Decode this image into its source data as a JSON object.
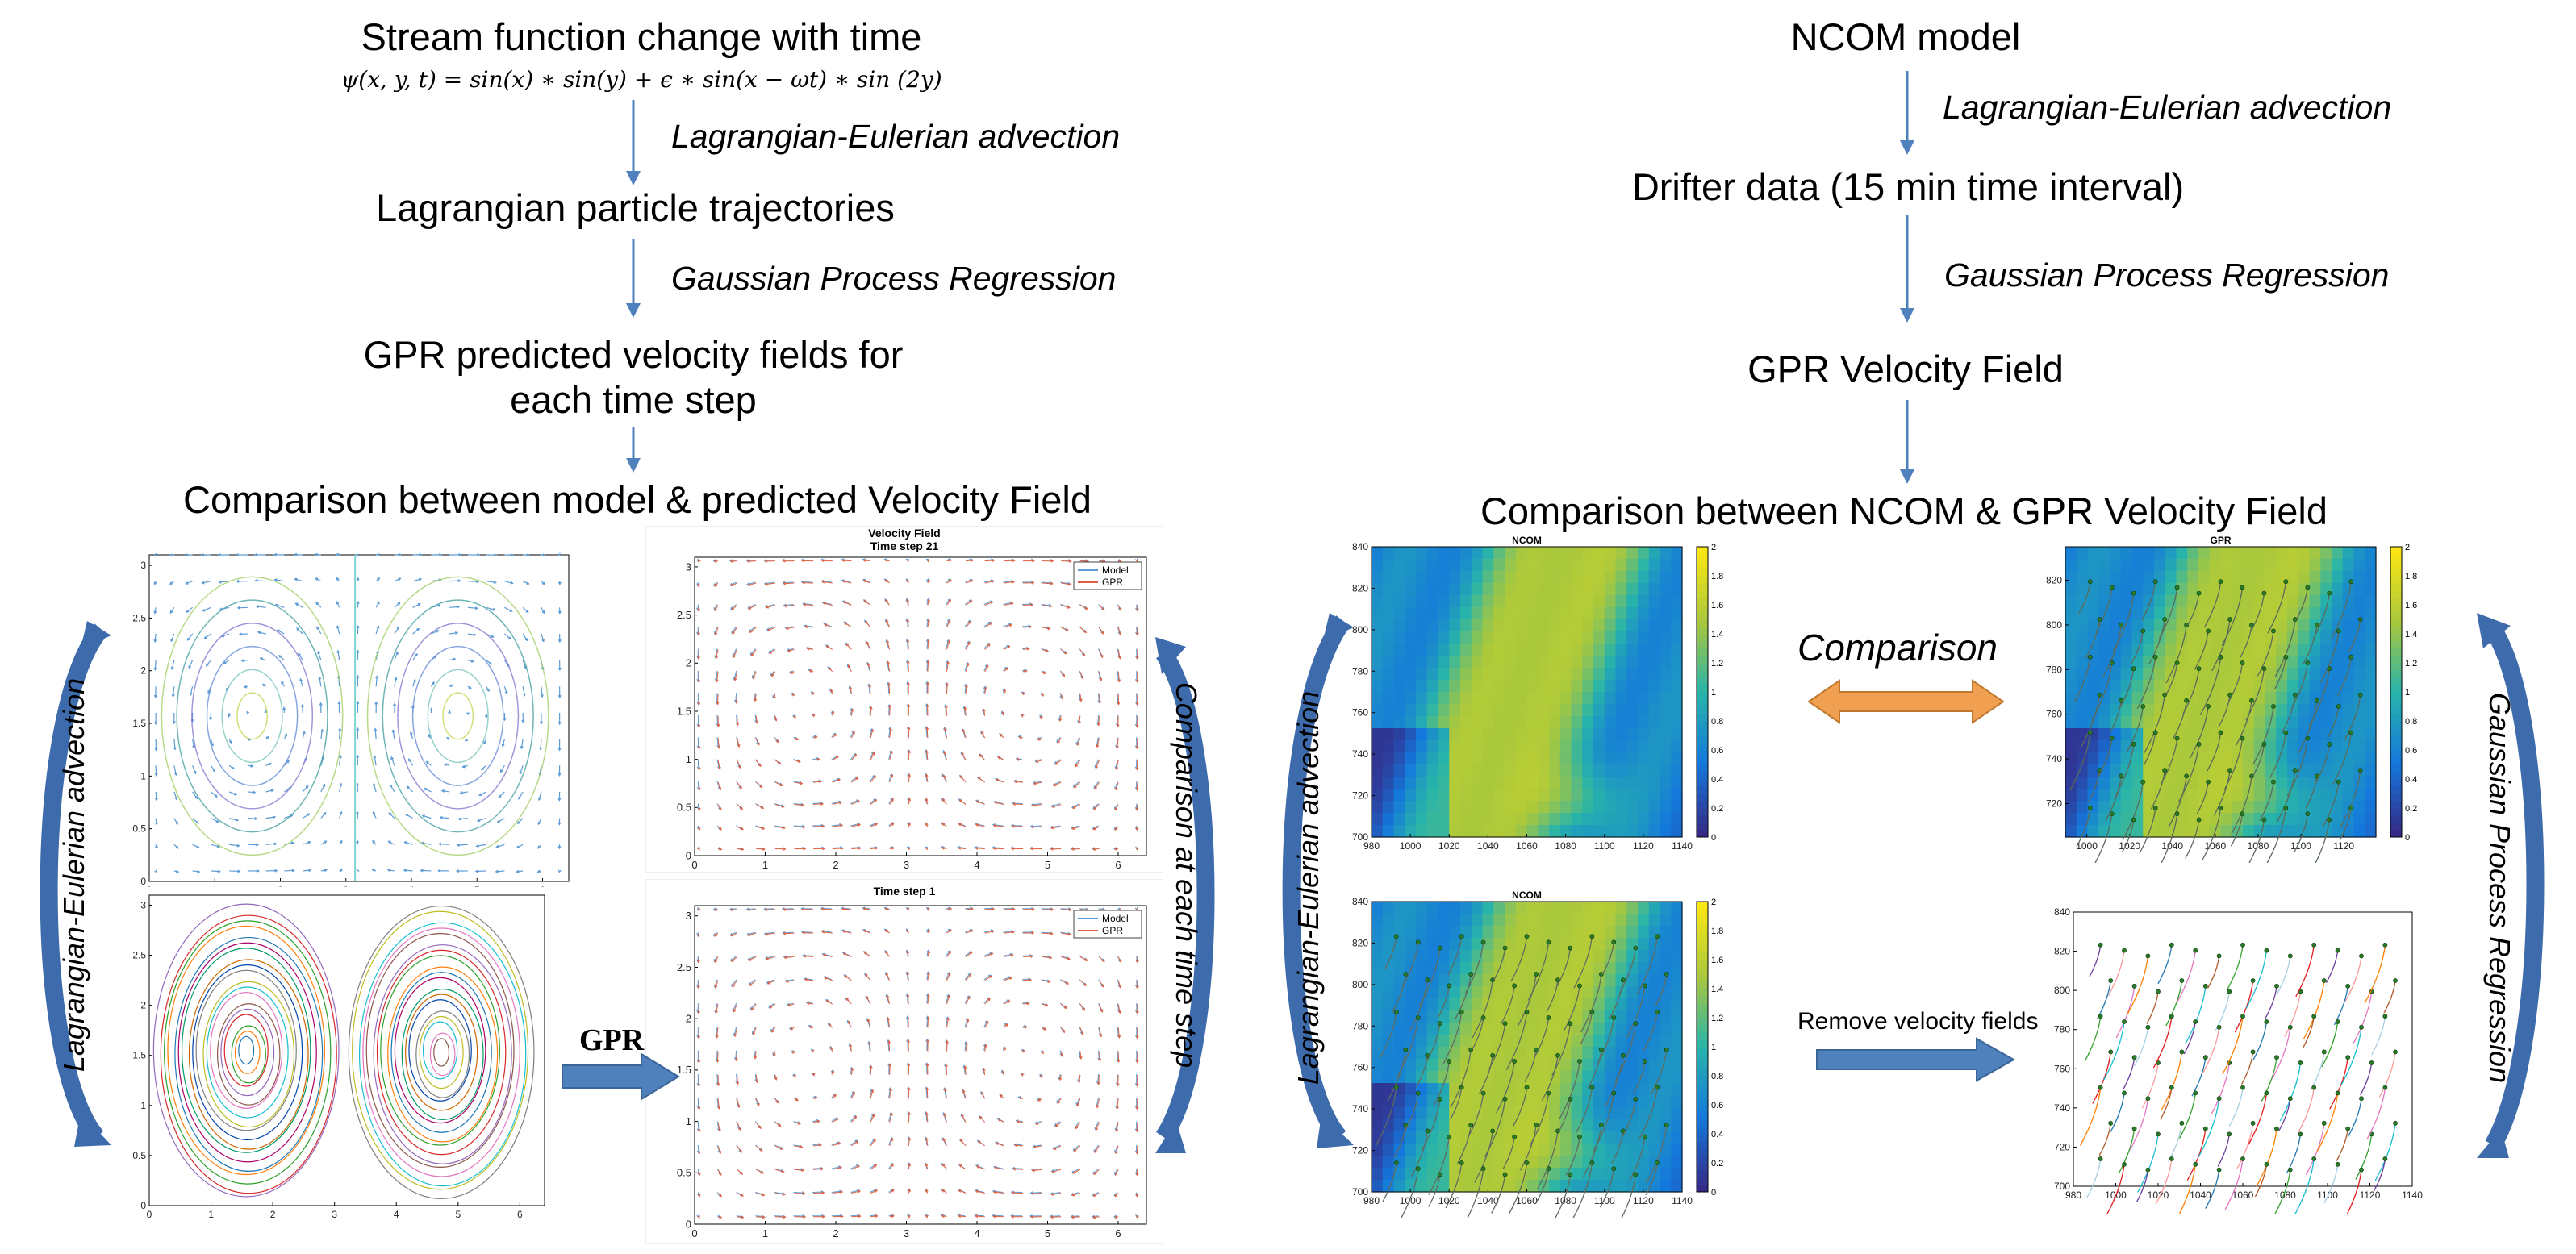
{
  "left": {
    "title": "Stream function change with time",
    "formula": "ψ(x, y, t) = sin(x) ∗ sin(y) + ϵ ∗ sin(x − ωt) ∗ sin (2y)",
    "step1_label": "Lagrangian-Eulerian  advection",
    "trajectories": "Lagrangian particle trajectories",
    "step2_label": "Gaussian Process Regression",
    "gpr_predicted_line1": "GPR predicted velocity fields for",
    "gpr_predicted_line2": "each time step",
    "comparison": "Comparison between model & predicted Velocity Field",
    "side_label_left": "Lagrangian-Eulerian advection",
    "side_label_right": "Comparison at each time step",
    "gpr_arrow_label": "GPR",
    "plot_velocity_title": "Velocity Field",
    "plot_step21": "Time step 21",
    "plot_step1": "Time step 1",
    "legend_model": "Model",
    "legend_gpr": "GPR",
    "x_ticks": [
      "0",
      "1",
      "2",
      "3",
      "4",
      "5",
      "6"
    ],
    "y_ticks": [
      "0",
      "0.5",
      "1",
      "1.5",
      "2",
      "2.5",
      "3"
    ]
  },
  "right": {
    "title": "NCOM model",
    "step1_label": "Lagrangian-Eulerian  advection",
    "drifter": "Drifter data (15 min time interval)",
    "step2_label": "Gaussian Process Regression",
    "gpr_field": "GPR Velocity Field",
    "comparison": "Comparison between NCOM & GPR Velocity Field",
    "comparison_arrow": "Comparison",
    "remove_label": "Remove velocity fields",
    "side_label_left": "Lagrangian-Eulerian advection",
    "side_label_right": "Gaussian Process Regression",
    "map_title_ncom": "NCOM",
    "map_title_gpr": "GPR",
    "x_ticks": [
      "980",
      "1000",
      "1020",
      "1040",
      "1060",
      "1080",
      "1100",
      "1120",
      "1140"
    ],
    "x_ticks_gpr": [
      "1000",
      "1020",
      "1040",
      "1060",
      "1080",
      "1100",
      "1120"
    ],
    "y_ticks": [
      "700",
      "720",
      "740",
      "760",
      "780",
      "800",
      "820",
      "840"
    ],
    "y_ticks_gpr": [
      "720",
      "740",
      "760",
      "780",
      "800",
      "820"
    ],
    "colorbar_ticks": [
      "0",
      "0.2",
      "0.4",
      "0.6",
      "0.8",
      "1",
      "1.2",
      "1.4",
      "1.6",
      "1.8",
      "2"
    ]
  },
  "colors": {
    "arrow_blue": "#4f81bd",
    "side_arrow": "#3d6bab",
    "orange_arrow": "#f0a050",
    "model_quiver": "#5b9bd5",
    "gpr_quiver": "#e06040"
  }
}
